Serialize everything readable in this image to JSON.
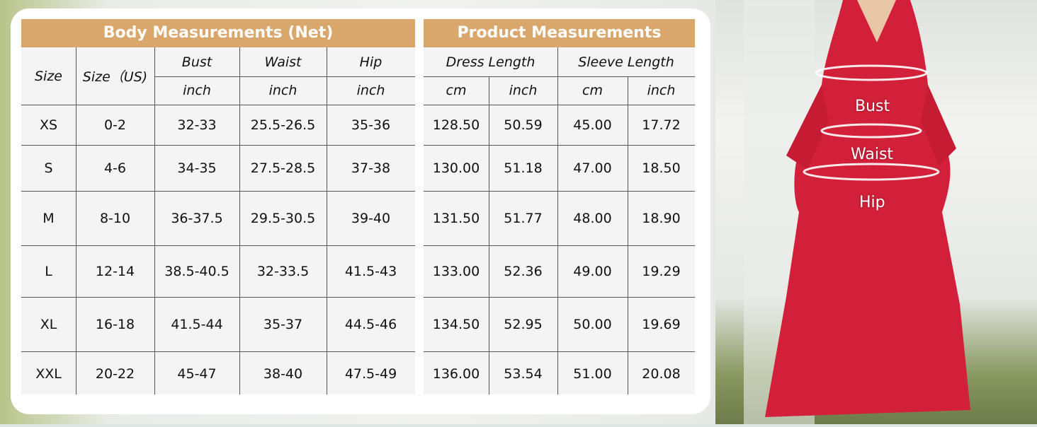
{
  "body_table": {
    "title": "Body Measurements (Net)",
    "headers": {
      "size": "Size",
      "size_us": "Size（US)",
      "bust": "Bust",
      "waist": "Waist",
      "hip": "Hip",
      "unit": "inch"
    },
    "rows": [
      [
        "XS",
        "0-2",
        "32-33",
        "25.5-26.5",
        "35-36"
      ],
      [
        "S",
        "4-6",
        "34-35",
        "27.5-28.5",
        "37-38"
      ],
      [
        "M",
        "8-10",
        "36-37.5",
        "29.5-30.5",
        "39-40"
      ],
      [
        "L",
        "12-14",
        "38.5-40.5",
        "32-33.5",
        "41.5-43"
      ],
      [
        "XL",
        "16-18",
        "41.5-44",
        "35-37",
        "44.5-46"
      ],
      [
        "XXL",
        "20-22",
        "45-47",
        "38-40",
        "47.5-49"
      ]
    ]
  },
  "product_table": {
    "title": "Product Measurements",
    "headers": {
      "dress_length": "Dress   Length",
      "sleeve_length": "Sleeve   Length",
      "cm": "cm",
      "inch": "inch"
    },
    "rows": [
      [
        "128.50",
        "50.59",
        "45.00",
        "17.72"
      ],
      [
        "130.00",
        "51.18",
        "47.00",
        "18.50"
      ],
      [
        "131.50",
        "51.77",
        "48.00",
        "18.90"
      ],
      [
        "133.00",
        "52.36",
        "49.00",
        "19.29"
      ],
      [
        "134.50",
        "52.95",
        "50.00",
        "19.69"
      ],
      [
        "136.00",
        "53.54",
        "51.00",
        "20.08"
      ]
    ]
  },
  "photo": {
    "labels": {
      "bust": "Bust",
      "waist": "Waist",
      "hip": "Hip"
    },
    "dress_color": "#d3203a",
    "header_color": "#d9a66b"
  }
}
